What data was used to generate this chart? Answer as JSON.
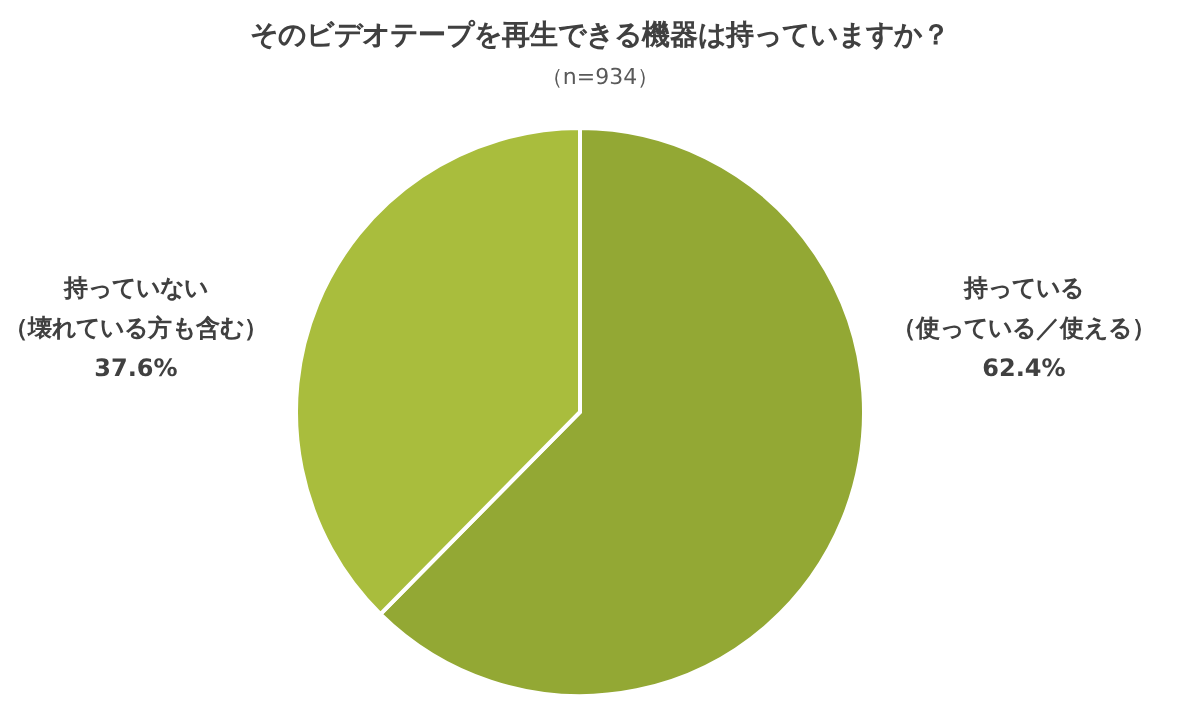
{
  "chart_data": {
    "type": "pie",
    "title": "そのビデオテープを再生できる機器は持っていますか？",
    "subtitle": "（n=934）",
    "categories": [
      "持っている（使っている／使える）",
      "持っていない（壊れている方も含む）"
    ],
    "values": [
      62.4,
      37.6
    ],
    "colors": [
      "#93a834",
      "#a9bd3d"
    ],
    "value_labels": [
      "62.4%",
      "37.6%"
    ]
  }
}
